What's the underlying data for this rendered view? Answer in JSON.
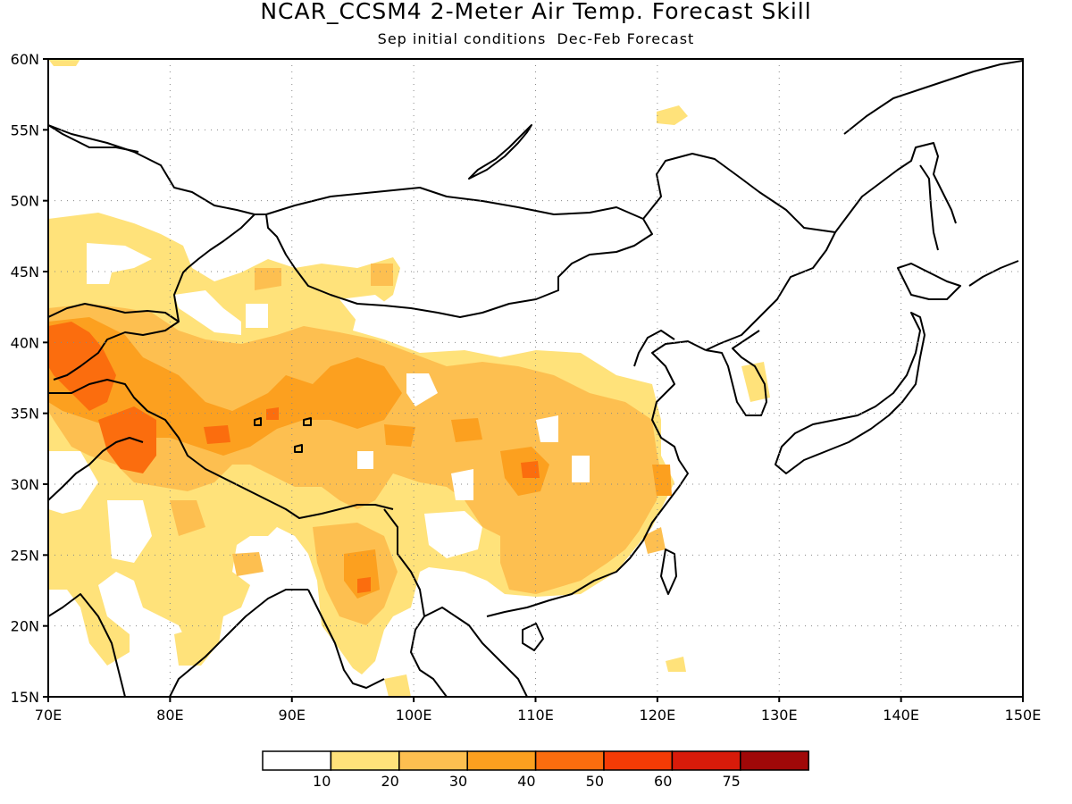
{
  "title": "NCAR_CCSM4 2-Meter Air Temp. Forecast Skill",
  "subtitle": "Sep initial conditions  Dec-Feb Forecast",
  "map": {
    "lon_range": [
      70,
      150
    ],
    "lat_range": [
      15,
      60
    ],
    "lon_ticks": [
      {
        "value": 70,
        "label": "70E"
      },
      {
        "value": 80,
        "label": "80E"
      },
      {
        "value": 90,
        "label": "90E"
      },
      {
        "value": 100,
        "label": "100E"
      },
      {
        "value": 110,
        "label": "110E"
      },
      {
        "value": 120,
        "label": "120E"
      },
      {
        "value": 130,
        "label": "130E"
      },
      {
        "value": 140,
        "label": "140E"
      },
      {
        "value": 150,
        "label": "150E"
      }
    ],
    "lat_ticks": [
      {
        "value": 15,
        "label": "15N"
      },
      {
        "value": 20,
        "label": "20N"
      },
      {
        "value": 25,
        "label": "25N"
      },
      {
        "value": 30,
        "label": "30N"
      },
      {
        "value": 35,
        "label": "35N"
      },
      {
        "value": 40,
        "label": "40N"
      },
      {
        "value": 45,
        "label": "45N"
      },
      {
        "value": 50,
        "label": "50N"
      },
      {
        "value": 55,
        "label": "55N"
      },
      {
        "value": 60,
        "label": "60N"
      }
    ],
    "gridlines": "dotted"
  },
  "colorbar": {
    "colors": [
      "#ffffff",
      "#ffe27a",
      "#fdbf50",
      "#fca01f",
      "#fb6d0e",
      "#f43b05",
      "#d81b0a",
      "#a00808"
    ],
    "labels": [
      "10",
      "20",
      "30",
      "40",
      "50",
      "60",
      "75"
    ]
  }
}
